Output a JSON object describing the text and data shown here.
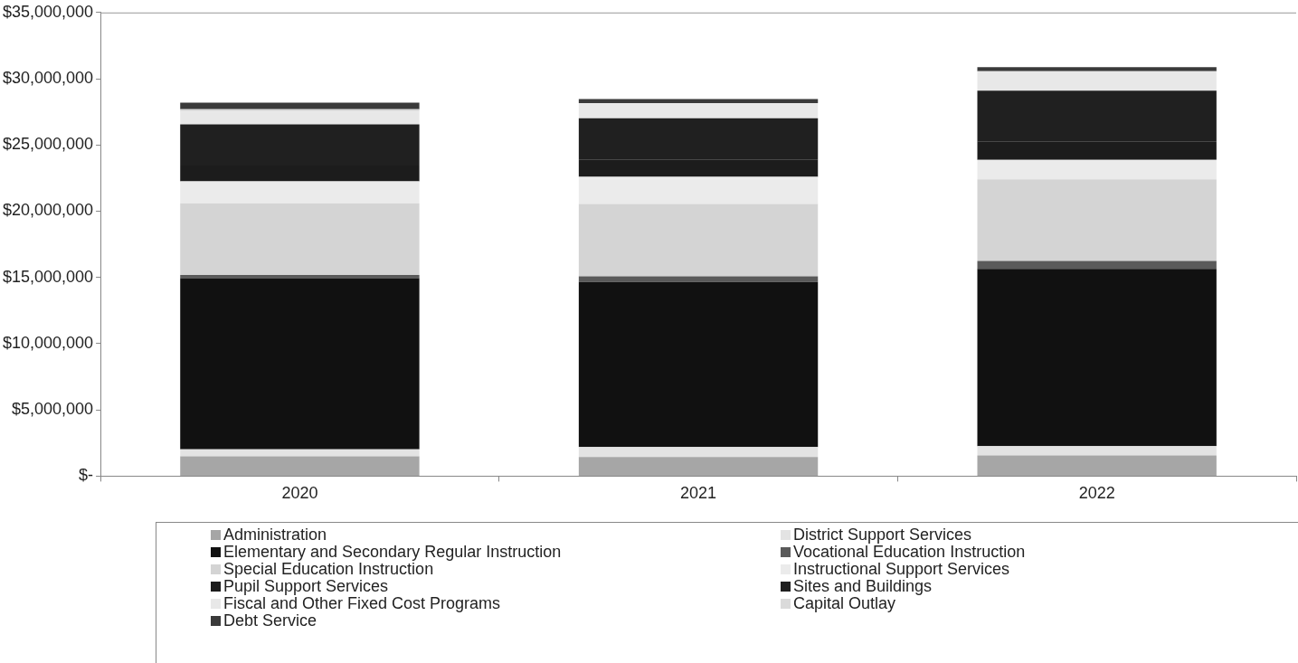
{
  "chart_data": {
    "type": "bar",
    "stacked": true,
    "categories": [
      "2020",
      "2021",
      "2022"
    ],
    "series": [
      {
        "name": "Administration",
        "color": "#a6a6a6",
        "values": [
          1490000,
          1450000,
          1560000
        ]
      },
      {
        "name": "District Support Services",
        "color": "#e3e3e3",
        "values": [
          530000,
          750000,
          700000
        ]
      },
      {
        "name": "Elementary and Secondary Regular Instruction",
        "color": "#111111",
        "values": [
          12930000,
          12460000,
          13390000
        ]
      },
      {
        "name": "Vocational Education Instruction",
        "color": "#5a5a5a",
        "values": [
          240000,
          420000,
          590000
        ]
      },
      {
        "name": "Special Education Instruction",
        "color": "#d4d4d4",
        "values": [
          5400000,
          5470000,
          6170000
        ]
      },
      {
        "name": "Instructional Support Services",
        "color": "#ebebeb",
        "values": [
          1660000,
          2050000,
          1470000
        ]
      },
      {
        "name": "Pupil Support Services",
        "color": "#1c1c1c",
        "values": [
          1200000,
          1300000,
          1400000
        ]
      },
      {
        "name": "Sites and Buildings",
        "color": "#202020",
        "values": [
          3100000,
          3120000,
          3820000
        ]
      },
      {
        "name": "Fiscal and Other Fixed Cost Programs",
        "color": "#e8e8e8",
        "values": [
          980000,
          1140000,
          1470000
        ]
      },
      {
        "name": "Capital Outlay",
        "color": "#dadada",
        "values": [
          170000,
          null,
          null
        ]
      },
      {
        "name": "Debt Service",
        "color": "#3a3a3a",
        "values": [
          490000,
          310000,
          310000
        ]
      }
    ],
    "ylim": [
      0,
      35000000
    ],
    "yticks": [
      {
        "value": 0,
        "label": "$-"
      },
      {
        "value": 5000000,
        "label": "$5,000,000"
      },
      {
        "value": 10000000,
        "label": "$10,000,000"
      },
      {
        "value": 15000000,
        "label": "$15,000,000"
      },
      {
        "value": 20000000,
        "label": "$20,000,000"
      },
      {
        "value": 25000000,
        "label": "$25,000,000"
      },
      {
        "value": 30000000,
        "label": "$30,000,000"
      },
      {
        "value": 35000000,
        "label": "$35,000,000"
      }
    ],
    "grid": false,
    "legend": "bottom"
  }
}
